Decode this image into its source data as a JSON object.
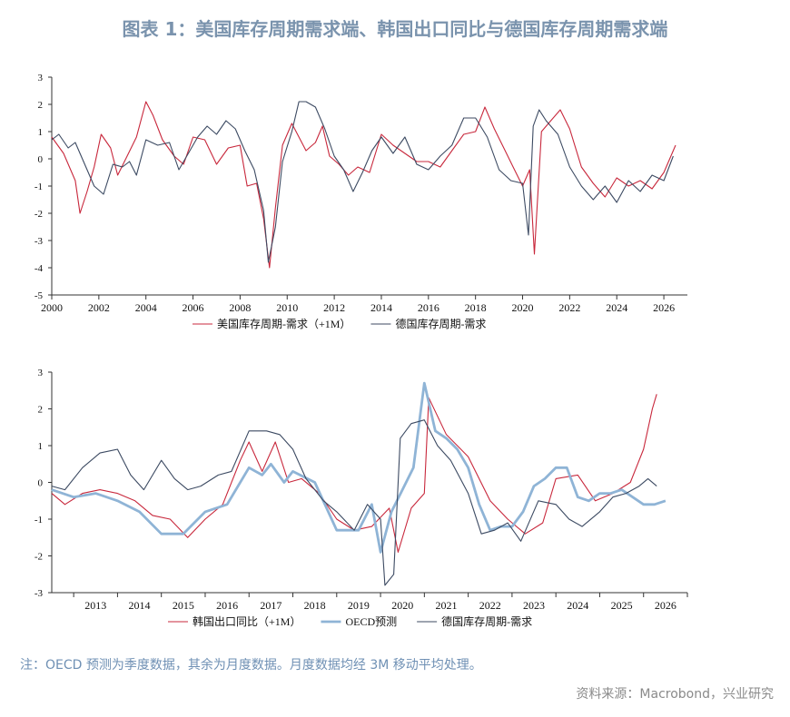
{
  "title": "图表 1：美国库存周期需求端、韩国出口同比与德国库存周期需求端",
  "note": "注：OECD 预测为季度数据，其余为月度数据。月度数据均经 3M 移动平均处理。",
  "source": "资料来源：Macrobond，兴业研究",
  "colors": {
    "red": "#c8283c",
    "navy": "#3c4a62",
    "blue": "#8fb4d6"
  },
  "chart_data": [
    {
      "type": "line",
      "ylim": [
        -5,
        3
      ],
      "yticks": [
        "3",
        "2",
        "1",
        "0",
        "-1",
        "-2",
        "-3",
        "-4",
        "-5"
      ],
      "xlim": [
        2000,
        2027
      ],
      "xticks": [
        "2000",
        "2002",
        "2004",
        "2006",
        "2008",
        "2010",
        "2012",
        "2014",
        "2016",
        "2018",
        "2020",
        "2022",
        "2024",
        "2026"
      ],
      "legend": "bottom",
      "series": [
        {
          "name": "美国库存周期-需求（+1M）",
          "color": "#c8283c",
          "x": [
            2000,
            2000.5,
            2001,
            2001.2,
            2001.5,
            2001.8,
            2002.1,
            2002.5,
            2002.8,
            2003.2,
            2003.6,
            2004,
            2004.3,
            2004.7,
            2005.2,
            2005.6,
            2006,
            2006.5,
            2007,
            2007.5,
            2008,
            2008.3,
            2008.7,
            2009,
            2009.25,
            2009.5,
            2009.8,
            2010.2,
            2010.5,
            2010.8,
            2011.2,
            2011.5,
            2011.8,
            2012.2,
            2012.6,
            2013,
            2013.5,
            2014,
            2014.5,
            2015,
            2015.5,
            2016,
            2016.5,
            2017,
            2017.5,
            2018,
            2018.4,
            2018.8,
            2019.2,
            2019.6,
            2020,
            2020.3,
            2020.5,
            2020.8,
            2021.2,
            2021.6,
            2022,
            2022.5,
            2023,
            2023.5,
            2024,
            2024.5,
            2025,
            2025.5,
            2026,
            2026.5
          ],
          "y": [
            0.8,
            0.2,
            -0.8,
            -2.0,
            -1.2,
            -0.3,
            0.9,
            0.4,
            -0.6,
            0.1,
            0.8,
            2.1,
            1.6,
            0.7,
            0.1,
            -0.2,
            0.8,
            0.7,
            -0.2,
            0.4,
            0.5,
            -1.0,
            -0.9,
            -2.2,
            -4.0,
            -1.8,
            0.5,
            1.3,
            0.8,
            0.3,
            0.6,
            1.2,
            0.1,
            -0.2,
            -0.6,
            -0.3,
            -0.5,
            0.9,
            0.5,
            0.2,
            -0.1,
            -0.1,
            -0.3,
            0.3,
            0.9,
            1.0,
            1.9,
            1.1,
            0.4,
            -0.3,
            -1.0,
            -0.4,
            -3.5,
            1.0,
            1.4,
            1.8,
            1.1,
            -0.3,
            -0.9,
            -1.4,
            -0.7,
            -1.0,
            -0.8,
            -1.1,
            -0.5,
            0.5
          ]
        },
        {
          "name": "德国库存周期-需求",
          "color": "#3c4a62",
          "x": [
            2000,
            2000.3,
            2000.7,
            2001,
            2001.5,
            2001.8,
            2002.2,
            2002.6,
            2003,
            2003.3,
            2003.6,
            2004,
            2004.5,
            2005,
            2005.4,
            2005.8,
            2006.2,
            2006.6,
            2007,
            2007.4,
            2007.8,
            2008.2,
            2008.6,
            2009,
            2009.2,
            2009.5,
            2009.8,
            2010.2,
            2010.5,
            2010.8,
            2011.2,
            2011.6,
            2012,
            2012.4,
            2012.8,
            2013.2,
            2013.6,
            2014,
            2014.5,
            2015,
            2015.5,
            2016,
            2016.5,
            2017,
            2017.5,
            2018,
            2018.5,
            2019,
            2019.5,
            2020,
            2020.25,
            2020.45,
            2020.7,
            2021,
            2021.5,
            2022,
            2022.5,
            2023,
            2023.5,
            2024,
            2024.5,
            2025,
            2025.5,
            2026,
            2026.4
          ],
          "y": [
            0.7,
            0.9,
            0.4,
            0.6,
            -0.4,
            -1.0,
            -1.3,
            -0.2,
            -0.3,
            -0.1,
            -0.6,
            0.7,
            0.5,
            0.6,
            -0.4,
            0.2,
            0.8,
            1.2,
            0.9,
            1.4,
            1.1,
            0.3,
            -0.4,
            -1.9,
            -3.8,
            -2.5,
            -0.1,
            1.0,
            2.1,
            2.1,
            1.9,
            1.1,
            0.1,
            -0.4,
            -1.2,
            -0.5,
            0.3,
            0.8,
            0.2,
            0.8,
            -0.2,
            -0.4,
            0.1,
            0.5,
            1.5,
            1.5,
            0.8,
            -0.4,
            -0.8,
            -0.9,
            -2.8,
            1.2,
            1.8,
            1.4,
            0.9,
            -0.3,
            -1.0,
            -1.5,
            -1.0,
            -1.6,
            -0.8,
            -1.2,
            -0.6,
            -0.8,
            0.1
          ]
        }
      ]
    },
    {
      "type": "line",
      "ylim": [
        -3,
        3
      ],
      "yticks": [
        "3",
        "2",
        "1",
        "0",
        "-1",
        "-2",
        "-3"
      ],
      "xlim": [
        2012.5,
        2027
      ],
      "xticks": [
        "2013",
        "2014",
        "2015",
        "2016",
        "2017",
        "2018",
        "2019",
        "2020",
        "2021",
        "2022",
        "2023",
        "2024",
        "2025",
        "2026"
      ],
      "legend": "bottom",
      "series": [
        {
          "name": "韩国出口同比（+1M）",
          "color": "#c8283c",
          "x": [
            2012.5,
            2012.8,
            2013.2,
            2013.6,
            2014,
            2014.4,
            2014.8,
            2015.2,
            2015.6,
            2016,
            2016.4,
            2016.8,
            2017,
            2017.3,
            2017.6,
            2017.9,
            2018.2,
            2018.6,
            2019,
            2019.4,
            2019.8,
            2020.2,
            2020.4,
            2020.7,
            2021,
            2021.1,
            2021.5,
            2022,
            2022.5,
            2022.9,
            2023.3,
            2023.7,
            2024,
            2024.5,
            2024.9,
            2025.3,
            2025.7,
            2026,
            2026.2,
            2026.3
          ],
          "y": [
            -0.3,
            -0.6,
            -0.3,
            -0.2,
            -0.3,
            -0.5,
            -0.9,
            -1.0,
            -1.5,
            -1.0,
            -0.6,
            0.6,
            1.1,
            0.3,
            1.1,
            0.0,
            0.1,
            -0.3,
            -1.0,
            -1.3,
            -1.2,
            -0.7,
            -1.9,
            -0.7,
            -0.3,
            2.3,
            1.3,
            0.7,
            -0.5,
            -1.0,
            -1.4,
            -1.1,
            0.1,
            0.2,
            -0.5,
            -0.3,
            0.0,
            0.9,
            2.0,
            2.4
          ]
        },
        {
          "name": "OECD预测",
          "color": "#8fb4d6",
          "x": [
            2012.5,
            2013,
            2013.5,
            2014,
            2014.5,
            2015,
            2015.5,
            2016,
            2016.5,
            2017,
            2017.3,
            2017.5,
            2017.8,
            2018,
            2018.5,
            2019,
            2019.5,
            2019.8,
            2020,
            2020.25,
            2020.5,
            2020.75,
            2021,
            2021.25,
            2021.5,
            2021.75,
            2022,
            2022.25,
            2022.5,
            2022.75,
            2023,
            2023.25,
            2023.5,
            2023.75,
            2024,
            2024.25,
            2024.5,
            2024.75,
            2025,
            2025.25,
            2025.5,
            2025.75,
            2026,
            2026.25,
            2026.5
          ],
          "y": [
            -0.2,
            -0.4,
            -0.3,
            -0.5,
            -0.8,
            -1.4,
            -1.4,
            -0.8,
            -0.6,
            0.4,
            0.2,
            0.5,
            0.0,
            0.3,
            0.0,
            -1.3,
            -1.3,
            -0.6,
            -1.9,
            -0.8,
            -0.2,
            0.4,
            2.7,
            1.4,
            1.2,
            0.9,
            0.4,
            -0.6,
            -1.3,
            -1.2,
            -1.2,
            -0.8,
            -0.1,
            0.1,
            0.4,
            0.4,
            -0.4,
            -0.5,
            -0.3,
            -0.3,
            -0.2,
            -0.4,
            -0.6,
            -0.6,
            -0.5
          ]
        },
        {
          "name": "德国库存周期-需求",
          "color": "#3c4a62",
          "x": [
            2012.5,
            2012.8,
            2013.2,
            2013.6,
            2014,
            2014.3,
            2014.6,
            2015,
            2015.3,
            2015.6,
            2015.9,
            2016.3,
            2016.6,
            2017,
            2017.4,
            2017.7,
            2018,
            2018.3,
            2018.7,
            2019,
            2019.4,
            2019.7,
            2020,
            2020.1,
            2020.3,
            2020.45,
            2020.7,
            2021,
            2021.3,
            2021.6,
            2022,
            2022.3,
            2022.6,
            2022.9,
            2023.2,
            2023.6,
            2024,
            2024.3,
            2024.6,
            2025,
            2025.3,
            2025.6,
            2025.9,
            2026.1,
            2026.3
          ],
          "y": [
            -0.1,
            -0.2,
            0.4,
            0.8,
            0.9,
            0.2,
            -0.2,
            0.6,
            0.1,
            -0.2,
            -0.1,
            0.2,
            0.3,
            1.4,
            1.4,
            1.3,
            0.9,
            0.1,
            -0.5,
            -0.8,
            -1.3,
            -0.6,
            -1.0,
            -2.8,
            -2.5,
            1.2,
            1.6,
            1.7,
            1.0,
            0.6,
            -0.3,
            -1.4,
            -1.3,
            -1.1,
            -1.6,
            -0.5,
            -0.6,
            -1.0,
            -1.2,
            -0.8,
            -0.4,
            -0.3,
            -0.1,
            0.1,
            -0.1
          ]
        }
      ]
    }
  ]
}
